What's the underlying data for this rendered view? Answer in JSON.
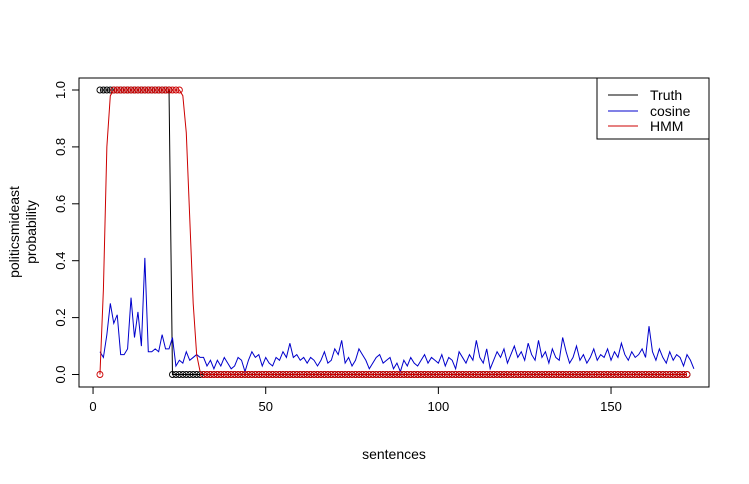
{
  "chart_data": {
    "type": "line",
    "title": "",
    "xlabel": "sentences",
    "ylabel_lines": [
      "politicsmideast",
      "probability"
    ],
    "xlim": [
      1,
      172
    ],
    "ylim": [
      0,
      1
    ],
    "x_ticks": [
      50,
      100,
      150
    ],
    "y_ticks": [
      0.0,
      0.2,
      0.4,
      0.6,
      0.8,
      1.0
    ],
    "y_tick_labels": [
      "0.0",
      "0.2",
      "0.4",
      "0.6",
      "0.8",
      "1.0"
    ],
    "x_tick_labels": [
      "0",
      "50",
      "100",
      "150"
    ],
    "x_ticks_all": [
      0,
      50,
      100,
      150
    ],
    "legend": {
      "position": "top-right",
      "entries": [
        {
          "label": "Truth",
          "color": "#000000"
        },
        {
          "label": "cosine",
          "color": "#0000cc"
        },
        {
          "label": "HMM",
          "color": "#cc0000"
        }
      ]
    },
    "series": [
      {
        "name": "Truth",
        "color": "#000000",
        "points": [
          [
            2,
            1
          ],
          [
            22,
            1
          ],
          [
            23,
            0
          ],
          [
            172,
            0
          ]
        ],
        "markers": true
      },
      {
        "name": "HMM",
        "color": "#cc0000",
        "points": [
          [
            2,
            0.0
          ],
          [
            3,
            0.3
          ],
          [
            4,
            0.8
          ],
          [
            5,
            0.98
          ],
          [
            6,
            1.0
          ],
          [
            25,
            1.0
          ],
          [
            26,
            0.98
          ],
          [
            27,
            0.85
          ],
          [
            28,
            0.55
          ],
          [
            29,
            0.25
          ],
          [
            30,
            0.07
          ],
          [
            31,
            0.01
          ],
          [
            32,
            0.0
          ],
          [
            172,
            0.0
          ]
        ],
        "markers": true
      },
      {
        "name": "cosine",
        "color": "#0000cc",
        "x_start": 2,
        "values": [
          0.08,
          0.06,
          0.14,
          0.25,
          0.18,
          0.21,
          0.07,
          0.07,
          0.09,
          0.27,
          0.13,
          0.22,
          0.1,
          0.41,
          0.08,
          0.08,
          0.09,
          0.08,
          0.14,
          0.09,
          0.09,
          0.13,
          0.03,
          0.05,
          0.04,
          0.08,
          0.05,
          0.06,
          0.07,
          0.06,
          0.06,
          0.03,
          0.05,
          0.02,
          0.05,
          0.03,
          0.06,
          0.04,
          0.02,
          0.03,
          0.06,
          0.05,
          0.01,
          0.05,
          0.08,
          0.06,
          0.07,
          0.03,
          0.06,
          0.04,
          0.03,
          0.06,
          0.05,
          0.08,
          0.06,
          0.11,
          0.06,
          0.07,
          0.05,
          0.06,
          0.04,
          0.06,
          0.05,
          0.03,
          0.05,
          0.08,
          0.04,
          0.05,
          0.09,
          0.07,
          0.12,
          0.04,
          0.06,
          0.03,
          0.05,
          0.09,
          0.07,
          0.05,
          0.02,
          0.04,
          0.06,
          0.07,
          0.04,
          0.05,
          0.06,
          0.02,
          0.04,
          0.01,
          0.05,
          0.03,
          0.06,
          0.04,
          0.03,
          0.05,
          0.07,
          0.04,
          0.06,
          0.05,
          0.04,
          0.07,
          0.03,
          0.06,
          0.05,
          0.02,
          0.08,
          0.06,
          0.04,
          0.07,
          0.05,
          0.12,
          0.06,
          0.04,
          0.09,
          0.02,
          0.05,
          0.08,
          0.06,
          0.09,
          0.04,
          0.07,
          0.1,
          0.06,
          0.08,
          0.05,
          0.11,
          0.07,
          0.05,
          0.12,
          0.06,
          0.08,
          0.04,
          0.09,
          0.06,
          0.05,
          0.13,
          0.08,
          0.04,
          0.06,
          0.1,
          0.05,
          0.07,
          0.04,
          0.06,
          0.09,
          0.05,
          0.07,
          0.06,
          0.09,
          0.05,
          0.08,
          0.06,
          0.11,
          0.07,
          0.05,
          0.08,
          0.06,
          0.07,
          0.09,
          0.06,
          0.17,
          0.08,
          0.05,
          0.09,
          0.06,
          0.04,
          0.08,
          0.05,
          0.07,
          0.06,
          0.03,
          0.07,
          0.05,
          0.02
        ]
      }
    ]
  }
}
